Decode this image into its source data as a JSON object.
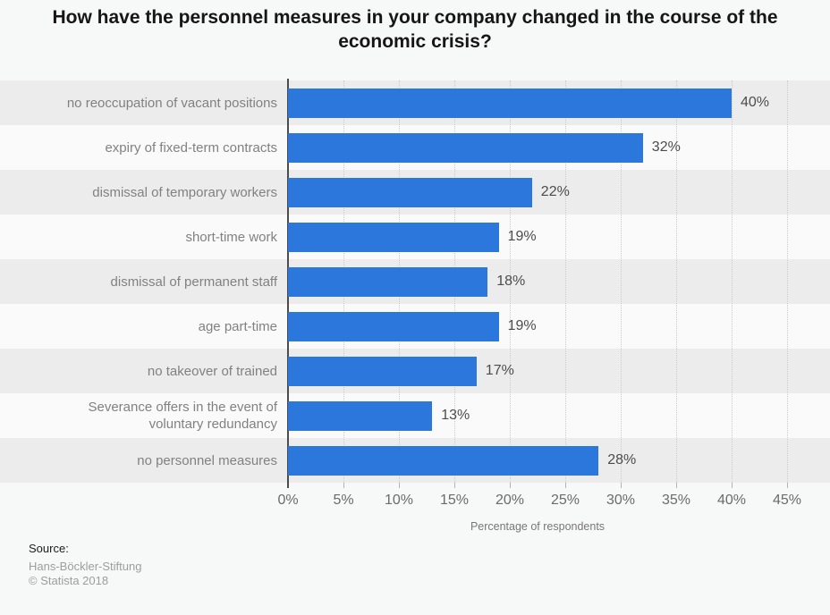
{
  "title": "How have the personnel measures in your company changed in the course of the economic crisis?",
  "chart_data": {
    "type": "bar",
    "orientation": "horizontal",
    "categories": [
      "no reoccupation of vacant positions",
      "expiry of fixed-term contracts",
      "dismissal of temporary workers",
      "short-time work",
      "dismissal of permanent staff",
      "age part-time",
      "no takeover of trained",
      "Severance offers in the event of voluntary redundancy",
      "no personnel measures"
    ],
    "values": [
      40,
      32,
      22,
      19,
      18,
      19,
      17,
      13,
      28
    ],
    "value_labels": [
      "40%",
      "32%",
      "22%",
      "19%",
      "18%",
      "19%",
      "17%",
      "13%",
      "28%"
    ],
    "xlabel": "Percentage of respondents",
    "xlim": [
      0,
      45
    ],
    "xtick_step": 5,
    "xticks": [
      "0%",
      "5%",
      "10%",
      "15%",
      "20%",
      "25%",
      "30%",
      "35%",
      "40%",
      "45%"
    ],
    "grid": "vertical dotted",
    "legend": "none",
    "bar_color": "#2b77db",
    "stripe_colors": [
      "#ececed",
      "#fafafa"
    ],
    "axis_line_color": "#4c4c4c"
  },
  "source": {
    "label": "Source:",
    "name": "Hans-Böckler-Stiftung",
    "copyright": "© Statista 2018"
  }
}
